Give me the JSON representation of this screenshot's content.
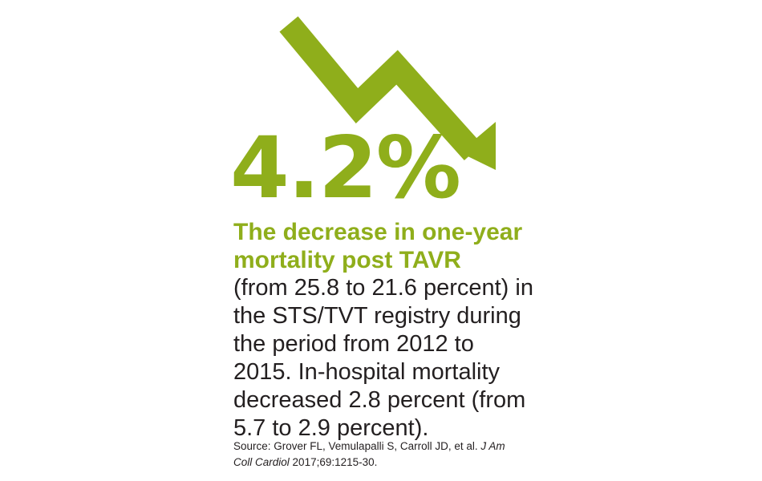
{
  "colors": {
    "accent": "#8fae1b",
    "text": "#231f20",
    "background": "#ffffff"
  },
  "graphic": {
    "icon": "downward-trend-arrow-icon"
  },
  "stat": {
    "value": "4.2%"
  },
  "headline": {
    "lines": [
      "The decrease in one-year",
      "mortality post TAVR"
    ]
  },
  "body": {
    "lines": [
      "(from 25.8 to 21.6 percent) in",
      "the STS/TVT registry during",
      "the period from 2012 to",
      "2015. In-hospital mortality",
      "decreased 2.8 percent (from",
      "5.7 to 2.9 percent)."
    ]
  },
  "source": {
    "line1_prefix": "Source: Grover FL, Vemulapalli S, Carroll JD, et al.",
    "line1_journal": "J Am",
    "line2_journal": "Coll Cardiol",
    "line2_suffix": "2017;69:1215-30."
  }
}
